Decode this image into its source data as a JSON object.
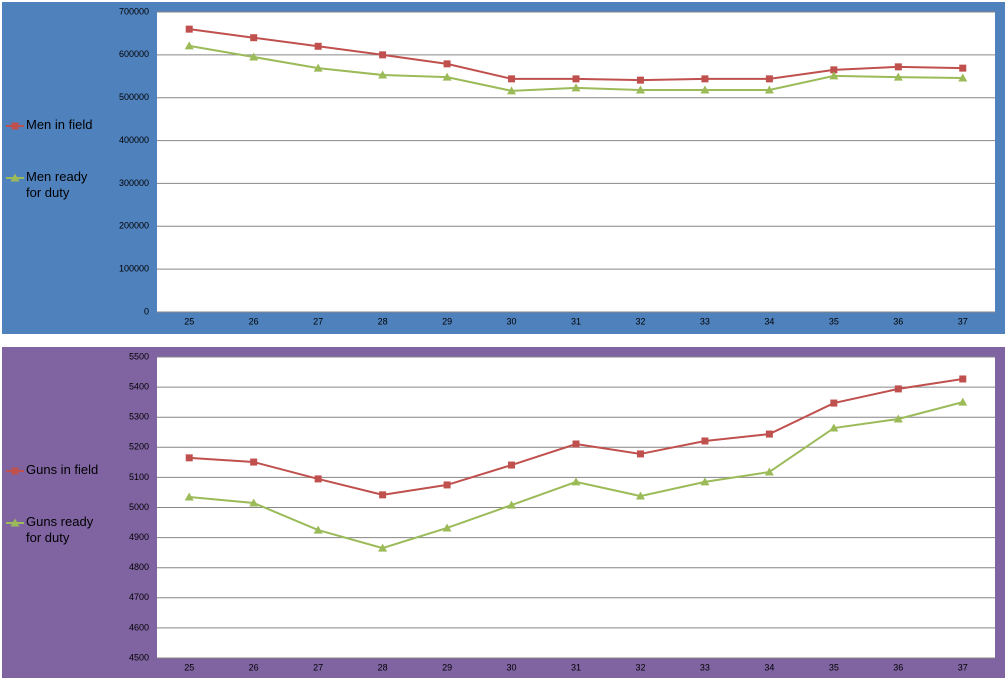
{
  "chart_data": [
    {
      "type": "line",
      "background": "#4f81bd",
      "grid": true,
      "categories": [
        "25",
        "26",
        "27",
        "28",
        "29",
        "30",
        "31",
        "32",
        "33",
        "34",
        "35",
        "36",
        "37"
      ],
      "ylim": [
        0,
        700000
      ],
      "yticks": [
        0,
        100000,
        200000,
        300000,
        400000,
        500000,
        600000,
        700000
      ],
      "series": [
        {
          "name": "Men in field",
          "color": "#c0504d",
          "marker": "square",
          "values": [
            660000,
            640000,
            620000,
            600000,
            579000,
            544000,
            544000,
            541000,
            544000,
            544000,
            565000,
            572000,
            569000
          ]
        },
        {
          "name": "Men ready for duty",
          "color": "#9bbb59",
          "marker": "triangle",
          "values": [
            621000,
            595000,
            569000,
            553000,
            548000,
            516000,
            523000,
            518000,
            518000,
            518000,
            551000,
            548000,
            546000
          ]
        }
      ]
    },
    {
      "type": "line",
      "background": "#8064a2",
      "grid": true,
      "categories": [
        "25",
        "26",
        "27",
        "28",
        "29",
        "30",
        "31",
        "32",
        "33",
        "34",
        "35",
        "36",
        "37"
      ],
      "ylim": [
        4500,
        5500
      ],
      "yticks": [
        4500,
        4600,
        4700,
        4800,
        4900,
        5000,
        5100,
        5200,
        5300,
        5400,
        5500
      ],
      "series": [
        {
          "name": "Guns in field",
          "color": "#c0504d",
          "marker": "square",
          "values": [
            5165,
            5151,
            5095,
            5042,
            5075,
            5141,
            5211,
            5178,
            5221,
            5244,
            5347,
            5394,
            5427
          ]
        },
        {
          "name": "Guns ready for duty",
          "color": "#9bbb59",
          "marker": "triangle",
          "values": [
            5035,
            5015,
            4925,
            4865,
            4932,
            5008,
            5085,
            5038,
            5085,
            5118,
            5264,
            5294,
            5350
          ]
        }
      ]
    }
  ]
}
